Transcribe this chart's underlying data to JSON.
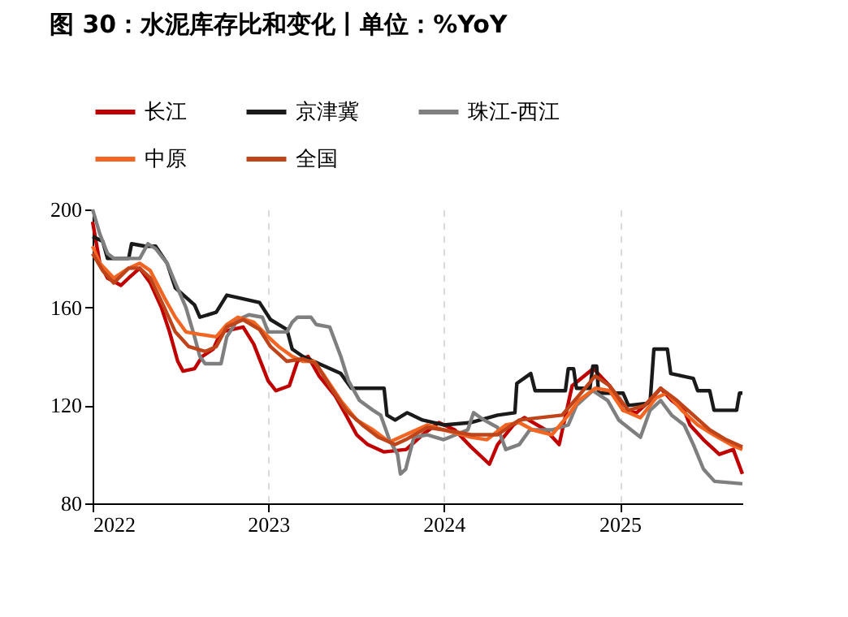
{
  "chart_data": {
    "type": "line",
    "title": "图 30：水泥库存比和变化丨单位：%YoY",
    "xlim": [
      "2022-01-01",
      "2025-09-13"
    ],
    "xticks": [
      {
        "value": "2022-01-01",
        "label": "2022"
      },
      {
        "value": "2023-01-01",
        "label": "2023"
      },
      {
        "value": "2024-01-01",
        "label": "2024"
      },
      {
        "value": "2025-01-01",
        "label": "2025"
      }
    ],
    "ylim": [
      80,
      200
    ],
    "yticks": [
      80,
      120,
      160,
      200
    ],
    "grid": "x",
    "legend": "top",
    "line_style": "solid",
    "series": [
      {
        "name": "长江",
        "color": "#c00000",
        "x": [
          "2022-01-01",
          "2022-01-16",
          "2022-02-01",
          "2022-03-01",
          "2022-03-17",
          "2022-04-09",
          "2022-05-01",
          "2022-05-24",
          "2022-06-10",
          "2022-06-27",
          "2022-07-08",
          "2022-08-01",
          "2022-08-17",
          "2022-09-09",
          "2022-09-25",
          "2022-11-10",
          "2022-12-02",
          "2023-01-01",
          "2023-01-17",
          "2023-02-14",
          "2023-03-03",
          "2023-03-25",
          "2023-04-17",
          "2023-05-20",
          "2023-06-12",
          "2023-07-04",
          "2023-07-27",
          "2023-08-30",
          "2023-10-15",
          "2023-11-18",
          "2023-12-22",
          "2024-01-24",
          "2024-02-27",
          "2024-04-05",
          "2024-04-22",
          "2024-05-25",
          "2024-06-17",
          "2024-07-31",
          "2024-08-28",
          "2024-09-24",
          "2024-11-07",
          "2024-12-11",
          "2025-01-08",
          "2025-02-05",
          "2025-03-05",
          "2025-03-27",
          "2025-04-19",
          "2025-05-15",
          "2025-05-27",
          "2025-06-24",
          "2025-07-27",
          "2025-08-25",
          "2025-09-13"
        ],
        "values": [
          195,
          178,
          172,
          169,
          172,
          176,
          170,
          160,
          150,
          138,
          134,
          135,
          140,
          143,
          150,
          152,
          145,
          130,
          126,
          128,
          138,
          140,
          132,
          124,
          116,
          108,
          104,
          101,
          102,
          108,
          113,
          110,
          103,
          96,
          104,
          112,
          115,
          110,
          104,
          128,
          135,
          128,
          118,
          117,
          122,
          127,
          122,
          118,
          112,
          106,
          100,
          102,
          92
        ]
      },
      {
        "name": "京津冀",
        "color": "#1a1a1a",
        "x": [
          "2022-01-01",
          "2022-01-22",
          "2022-02-01",
          "2022-03-17",
          "2022-03-23",
          "2022-04-20",
          "2022-05-12",
          "2022-06-05",
          "2022-06-22",
          "2022-08-01",
          "2022-08-12",
          "2022-09-15",
          "2022-10-07",
          "2022-10-30",
          "2022-12-14",
          "2023-01-06",
          "2023-02-09",
          "2023-02-20",
          "2023-03-14",
          "2023-04-28",
          "2023-06-01",
          "2023-06-23",
          "2023-08-30",
          "2023-09-05",
          "2023-09-22",
          "2023-10-17",
          "2023-11-18",
          "2024-01-01",
          "2024-02-27",
          "2024-04-22",
          "2024-05-28",
          "2024-06-01",
          "2024-06-30",
          "2024-07-09",
          "2024-09-10",
          "2024-09-16",
          "2024-09-27",
          "2024-10-03",
          "2024-10-31",
          "2024-11-06",
          "2024-11-14",
          "2024-11-18",
          "2025-01-08",
          "2025-01-19",
          "2025-03-05",
          "2025-03-13",
          "2025-04-10",
          "2025-04-17",
          "2025-06-03",
          "2025-06-12",
          "2025-07-07",
          "2025-07-16",
          "2025-09-01",
          "2025-09-07",
          "2025-09-13"
        ],
        "values": [
          189,
          187,
          180,
          180,
          186,
          185,
          185,
          178,
          168,
          161,
          156,
          158,
          165,
          164,
          162,
          155,
          151,
          143,
          140,
          136,
          133,
          127,
          127,
          116,
          114,
          117,
          114,
          112,
          113,
          116,
          117,
          129,
          133,
          126,
          126,
          135,
          135,
          127,
          127,
          136,
          136,
          125,
          125,
          120,
          121,
          143,
          143,
          133,
          131,
          126,
          126,
          118,
          118,
          125,
          125
        ]
      },
      {
        "name": "珠江-西江",
        "color": "#7f7f7f",
        "x": [
          "2022-01-01",
          "2022-01-16",
          "2022-02-01",
          "2022-02-14",
          "2022-04-09",
          "2022-04-26",
          "2022-05-12",
          "2022-06-05",
          "2022-06-22",
          "2022-07-14",
          "2022-08-01",
          "2022-08-12",
          "2022-08-23",
          "2022-09-25",
          "2022-10-07",
          "2022-10-30",
          "2022-11-22",
          "2022-12-20",
          "2023-01-01",
          "2023-02-09",
          "2023-02-20",
          "2023-03-03",
          "2023-03-31",
          "2023-04-11",
          "2023-05-09",
          "2023-06-01",
          "2023-06-17",
          "2023-07-10",
          "2023-08-07",
          "2023-08-23",
          "2023-09-10",
          "2023-09-27",
          "2023-10-03",
          "2023-10-14",
          "2023-10-31",
          "2023-11-28",
          "2024-01-01",
          "2024-02-20",
          "2024-03-03",
          "2024-03-25",
          "2024-04-22",
          "2024-05-09",
          "2024-06-06",
          "2024-06-28",
          "2024-08-13",
          "2024-09-16",
          "2024-10-03",
          "2024-11-06",
          "2024-12-07",
          "2024-12-30",
          "2025-02-13",
          "2025-03-05",
          "2025-03-27",
          "2025-04-19",
          "2025-05-15",
          "2025-06-03",
          "2025-06-24",
          "2025-07-17",
          "2025-09-13"
        ],
        "values": [
          200,
          190,
          182,
          180,
          180,
          186,
          184,
          178,
          170,
          160,
          148,
          140,
          137,
          137,
          148,
          155,
          157,
          156,
          150,
          150,
          154,
          156,
          156,
          153,
          152,
          140,
          130,
          122,
          118,
          116,
          106,
          100,
          92,
          94,
          107,
          108,
          106,
          110,
          117,
          114,
          111,
          102,
          104,
          110,
          110,
          112,
          120,
          126,
          122,
          114,
          107,
          118,
          122,
          116,
          112,
          104,
          94,
          89,
          88
        ]
      },
      {
        "name": "中原",
        "color": "#f26522",
        "x": [
          "2022-01-01",
          "2022-01-16",
          "2022-02-14",
          "2022-03-17",
          "2022-04-09",
          "2022-05-01",
          "2022-05-30",
          "2022-06-22",
          "2022-07-14",
          "2022-08-12",
          "2022-09-15",
          "2022-10-07",
          "2022-10-30",
          "2022-12-02",
          "2023-01-01",
          "2023-01-23",
          "2023-02-20",
          "2023-03-14",
          "2023-04-06",
          "2023-04-28",
          "2023-06-01",
          "2023-07-04",
          "2023-08-07",
          "2023-09-10",
          "2023-10-14",
          "2023-11-28",
          "2024-01-01",
          "2024-02-27",
          "2024-03-31",
          "2024-05-09",
          "2024-06-06",
          "2024-07-04",
          "2024-08-13",
          "2024-09-16",
          "2024-10-08",
          "2024-11-11",
          "2024-12-11",
          "2025-01-08",
          "2025-02-13",
          "2025-03-17",
          "2025-04-09",
          "2025-05-10",
          "2025-06-12",
          "2025-07-15",
          "2025-08-20",
          "2025-09-13"
        ],
        "values": [
          185,
          178,
          172,
          176,
          178,
          175,
          164,
          156,
          150,
          149,
          148,
          153,
          156,
          154,
          148,
          144,
          140,
          138,
          138,
          132,
          122,
          114,
          110,
          105,
          108,
          112,
          110,
          107,
          106,
          112,
          113,
          110,
          108,
          116,
          122,
          127,
          126,
          118,
          115,
          123,
          125,
          118,
          112,
          108,
          104,
          102
        ]
      },
      {
        "name": "全国",
        "color": "#c0441a",
        "x": [
          "2022-01-01",
          "2022-01-22",
          "2022-02-14",
          "2022-03-17",
          "2022-04-09",
          "2022-05-01",
          "2022-05-30",
          "2022-06-22",
          "2022-07-20",
          "2022-08-23",
          "2022-09-15",
          "2022-10-07",
          "2022-11-10",
          "2022-12-14",
          "2023-01-06",
          "2023-02-09",
          "2023-03-14",
          "2023-04-11",
          "2023-05-09",
          "2023-06-12",
          "2023-07-16",
          "2023-08-18",
          "2023-09-22",
          "2023-10-14",
          "2023-11-28",
          "2024-01-01",
          "2024-02-27",
          "2024-04-22",
          "2024-06-06",
          "2024-07-20",
          "2024-09-03",
          "2024-10-08",
          "2024-11-11",
          "2024-12-11",
          "2025-01-19",
          "2025-02-22",
          "2025-03-27",
          "2025-04-30",
          "2025-06-03",
          "2025-07-07",
          "2025-08-10",
          "2025-09-13"
        ],
        "values": [
          182,
          175,
          170,
          176,
          176,
          172,
          160,
          150,
          144,
          142,
          144,
          152,
          155,
          151,
          144,
          138,
          139,
          137,
          128,
          118,
          112,
          107,
          104,
          106,
          111,
          110,
          108,
          108,
          114,
          115,
          116,
          124,
          132,
          128,
          118,
          120,
          127,
          122,
          116,
          110,
          106,
          103
        ]
      }
    ]
  }
}
